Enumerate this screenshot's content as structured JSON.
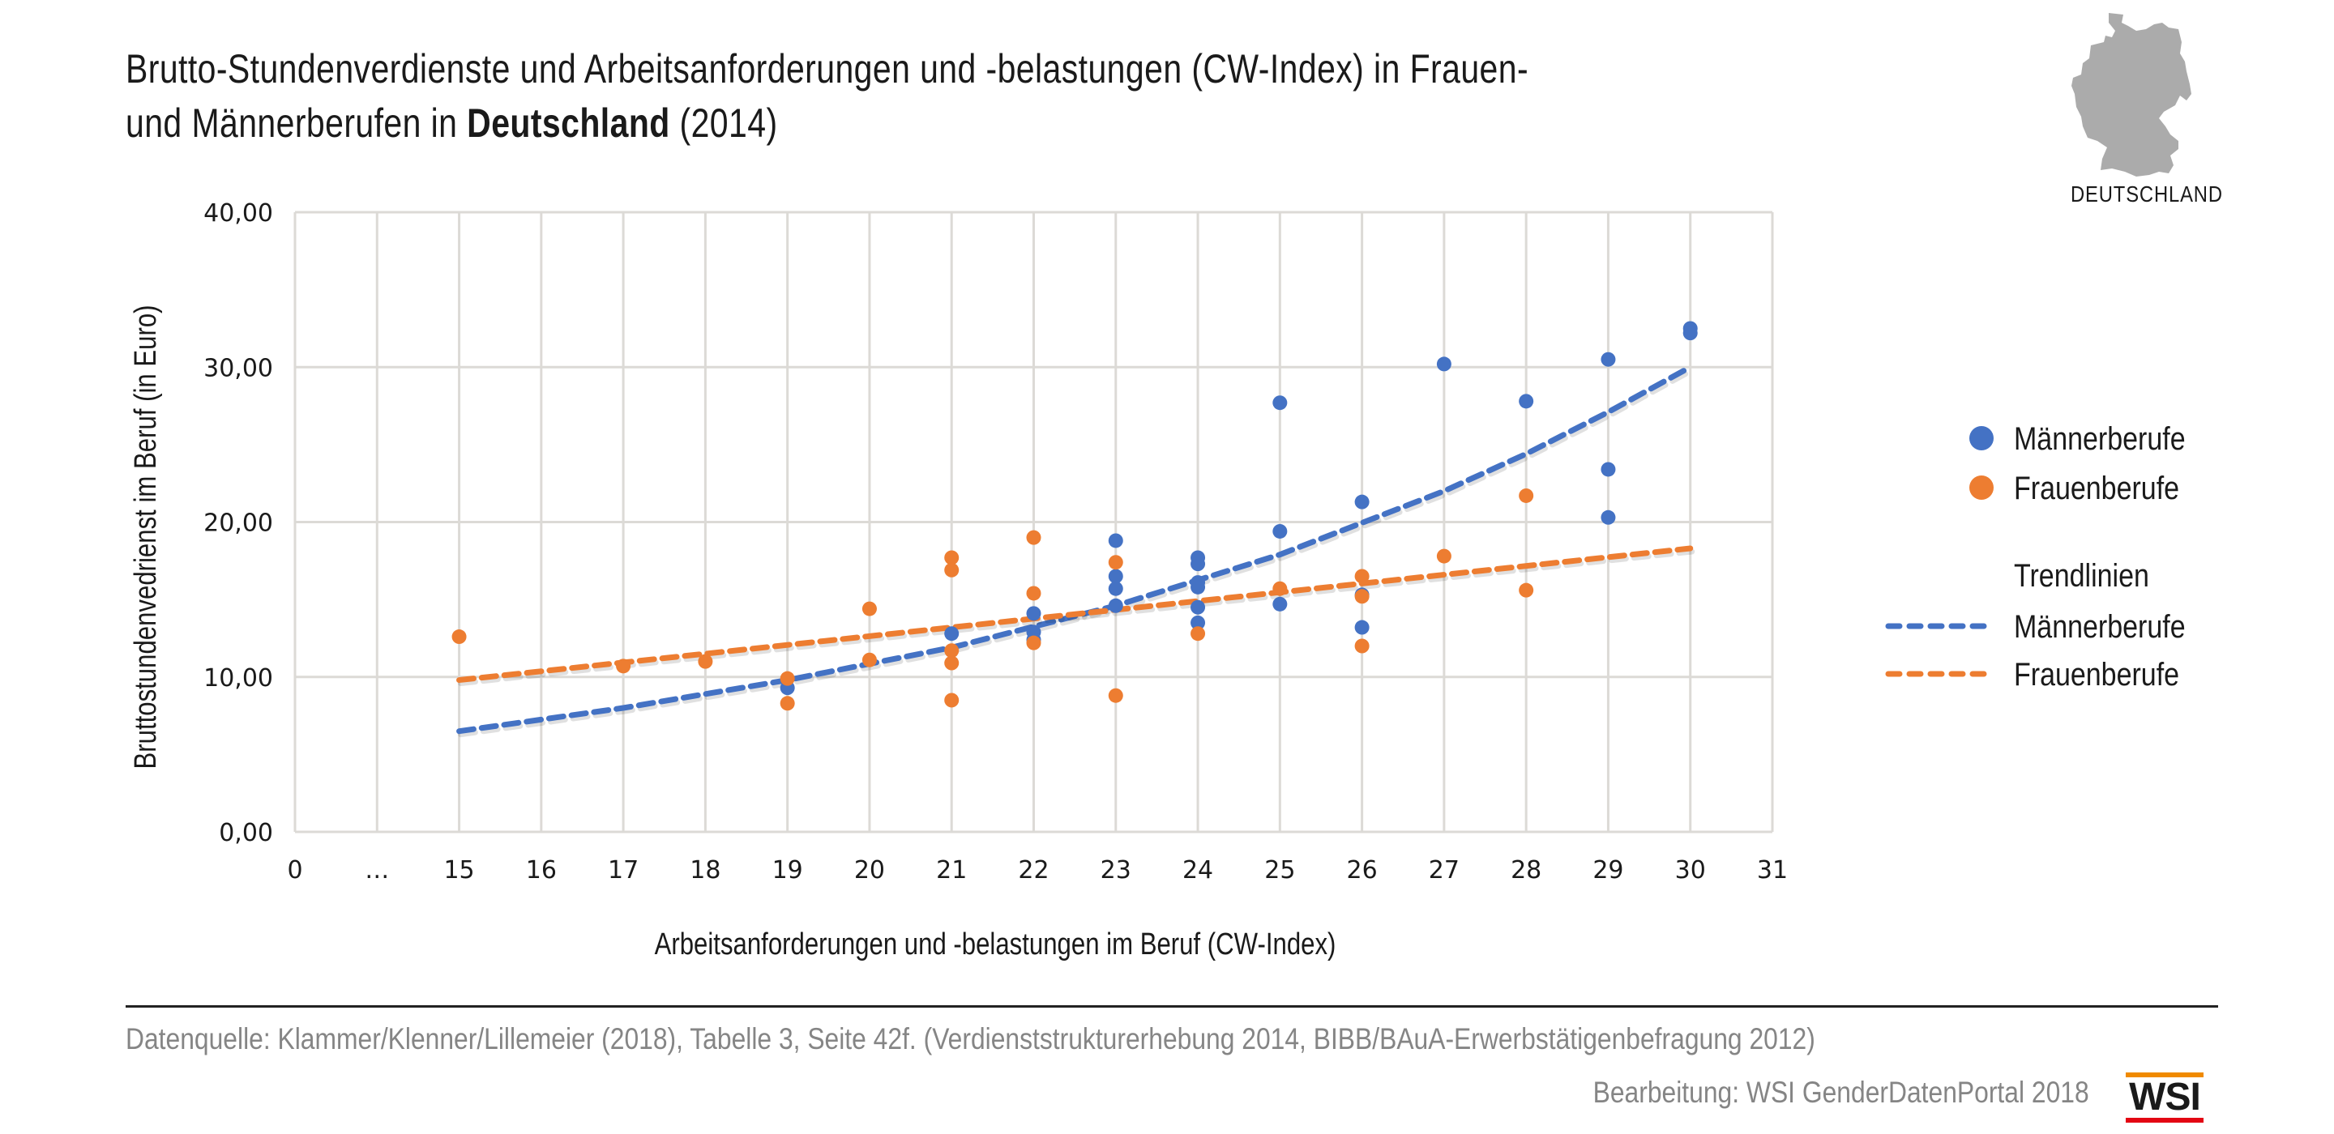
{
  "header": {
    "title_line1": "Brutto-Stundenverdienste und Arbeitsanforderungen und -belastungen (CW-Index) in Frauen-",
    "title_line2_pre": "und Männerberufen in ",
    "title_line2_bold": "Deutschland",
    "title_line2_post": " (2014)"
  },
  "map": {
    "icon": "germany-map-icon",
    "label": "DEUTSCHLAND",
    "color": "#ababab"
  },
  "footer": {
    "source": "Datenquelle: Klammer/Klenner/Lillemeier (2018), Tabelle 3, Seite 42f. (Verdienststrukturerhebung 2014, BIBB/BAuA-Erwerbstätigenbefragung  2012)",
    "credit": "Bearbeitung: WSI GenderDatenPortal 2018",
    "logo_text": "WSI",
    "logo_colors": {
      "top": "#f08a00",
      "bottom": "#e30613"
    }
  },
  "chart_data": {
    "type": "scatter",
    "title": "Brutto-Stundenverdienste und Arbeitsanforderungen und -belastungen (CW-Index) in Frauen- und Männerberufen in Deutschland (2014)",
    "xlabel": "Arbeitsanforderungen und -belastungen im Beruf (CW-Index)",
    "ylabel": "Bruttostundenvedrienst im Beruf (in Euro)",
    "x_categories": [
      "0",
      "…",
      "15",
      "16",
      "17",
      "18",
      "19",
      "20",
      "21",
      "22",
      "23",
      "24",
      "25",
      "26",
      "27",
      "28",
      "29",
      "30",
      "31"
    ],
    "x_note": "axis break: 0 … 15; categories spaced evenly",
    "ylim": [
      0,
      40
    ],
    "yticks": [
      "0,00",
      "10,00",
      "20,00",
      "30,00",
      "40,00"
    ],
    "ytick_values": [
      0,
      10,
      20,
      30,
      40
    ],
    "grid": true,
    "legend_position": "right",
    "series": [
      {
        "name": "Männerberufe",
        "color": "#4472c4",
        "points": [
          [
            19,
            9.3
          ],
          [
            21,
            12.8
          ],
          [
            22,
            14.1
          ],
          [
            22,
            12.9
          ],
          [
            22,
            12.4
          ],
          [
            23,
            18.8
          ],
          [
            23,
            16.5
          ],
          [
            23,
            15.7
          ],
          [
            23,
            14.6
          ],
          [
            24,
            17.7
          ],
          [
            24,
            17.3
          ],
          [
            24,
            16.1
          ],
          [
            24,
            15.8
          ],
          [
            24,
            14.5
          ],
          [
            24,
            13.5
          ],
          [
            25,
            27.7
          ],
          [
            25,
            19.4
          ],
          [
            25,
            14.7
          ],
          [
            26,
            21.3
          ],
          [
            26,
            15.3
          ],
          [
            26,
            13.2
          ],
          [
            27,
            30.2
          ],
          [
            28,
            27.8
          ],
          [
            29,
            30.5
          ],
          [
            29,
            23.4
          ],
          [
            29,
            20.3
          ],
          [
            30,
            32.5
          ],
          [
            30,
            32.2
          ]
        ]
      },
      {
        "name": "Frauenberufe",
        "color": "#ed7d31",
        "points": [
          [
            15,
            12.6
          ],
          [
            17,
            10.7
          ],
          [
            18,
            11.0
          ],
          [
            19,
            9.9
          ],
          [
            19,
            8.3
          ],
          [
            20,
            14.4
          ],
          [
            20,
            11.1
          ],
          [
            21,
            17.7
          ],
          [
            21,
            16.9
          ],
          [
            21,
            11.7
          ],
          [
            21,
            10.9
          ],
          [
            21,
            8.5
          ],
          [
            22,
            19.0
          ],
          [
            22,
            15.4
          ],
          [
            22,
            12.2
          ],
          [
            23,
            17.4
          ],
          [
            23,
            8.8
          ],
          [
            24,
            12.8
          ],
          [
            25,
            15.7
          ],
          [
            26,
            16.5
          ],
          [
            26,
            15.2
          ],
          [
            26,
            12.0
          ],
          [
            27,
            17.8
          ],
          [
            28,
            21.7
          ],
          [
            28,
            15.6
          ]
        ]
      }
    ],
    "trendlines": {
      "heading": "Trendlinien",
      "items": [
        {
          "name": "Männerberufe",
          "color": "#4472c4",
          "type": "exponential",
          "points": [
            [
              15,
              6.5
            ],
            [
              17,
              8.0
            ],
            [
              19,
              9.8
            ],
            [
              21,
              11.9
            ],
            [
              23,
              14.6
            ],
            [
              25,
              17.9
            ],
            [
              27,
              22.0
            ],
            [
              28,
              24.4
            ],
            [
              29,
              27.1
            ],
            [
              30,
              30.0
            ]
          ]
        },
        {
          "name": "Frauenberufe",
          "color": "#ed7d31",
          "type": "linear",
          "points": [
            [
              15,
              9.8
            ],
            [
              30,
              18.3
            ]
          ]
        }
      ]
    }
  }
}
